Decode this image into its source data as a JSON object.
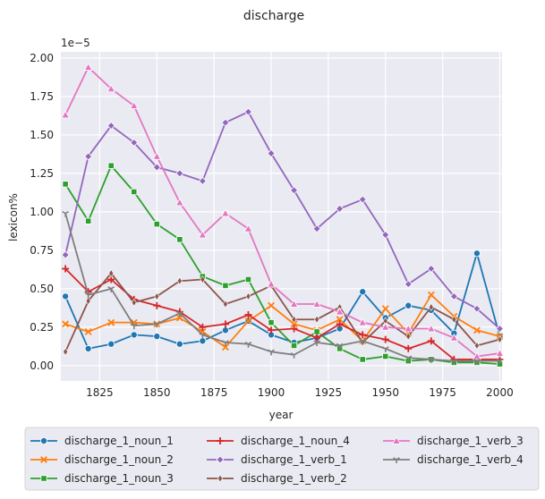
{
  "chart_data": {
    "type": "line",
    "title": "discharge",
    "xlabel": "year",
    "ylabel": "lexicon%",
    "y_multiplier_label": "1e−5",
    "xlim": [
      1808,
      2001
    ],
    "ylim": [
      -0.1,
      2.04
    ],
    "x_ticks": [
      1825,
      1850,
      1875,
      1900,
      1925,
      1950,
      1975,
      2000
    ],
    "y_ticks": [
      0.0,
      0.25,
      0.5,
      0.75,
      1.0,
      1.25,
      1.5,
      1.75,
      2.0
    ],
    "x_tick_labels": [
      "1825",
      "1850",
      "1875",
      "1900",
      "1925",
      "1950",
      "1975",
      "2000"
    ],
    "y_tick_labels": [
      "0.00",
      "0.25",
      "0.50",
      "0.75",
      "1.00",
      "1.25",
      "1.50",
      "1.75",
      "2.00"
    ],
    "grid": true,
    "legend_position": "bottom",
    "x": [
      1810,
      1820,
      1830,
      1840,
      1850,
      1860,
      1870,
      1880,
      1890,
      1900,
      1910,
      1920,
      1930,
      1940,
      1950,
      1960,
      1970,
      1980,
      1990,
      2000
    ],
    "series": [
      {
        "name": "discharge_1_noun_1",
        "color": "#1f77b4",
        "marker": "circle",
        "values": [
          0.45,
          0.11,
          0.14,
          0.2,
          0.19,
          0.14,
          0.16,
          0.23,
          0.29,
          0.2,
          0.15,
          0.18,
          0.24,
          0.48,
          0.31,
          0.39,
          0.36,
          0.21,
          0.73,
          0.19
        ]
      },
      {
        "name": "discharge_1_noun_2",
        "color": "#ff7f0e",
        "marker": "x",
        "values": [
          0.27,
          0.22,
          0.28,
          0.28,
          0.27,
          0.31,
          0.22,
          0.12,
          0.29,
          0.39,
          0.27,
          0.23,
          0.3,
          0.16,
          0.37,
          0.21,
          0.46,
          0.32,
          0.23,
          0.19
        ]
      },
      {
        "name": "discharge_1_noun_3",
        "color": "#2ca02c",
        "marker": "square",
        "values": [
          1.18,
          0.94,
          1.3,
          1.13,
          0.92,
          0.82,
          0.58,
          0.52,
          0.56,
          0.28,
          0.13,
          0.22,
          0.11,
          0.04,
          0.06,
          0.03,
          0.04,
          0.02,
          0.02,
          0.01
        ]
      },
      {
        "name": "discharge_1_noun_4",
        "color": "#d62728",
        "marker": "plus",
        "values": [
          0.63,
          0.48,
          0.56,
          0.43,
          0.39,
          0.35,
          0.25,
          0.27,
          0.33,
          0.23,
          0.24,
          0.18,
          0.27,
          0.2,
          0.17,
          0.11,
          0.16,
          0.04,
          0.04,
          0.04
        ]
      },
      {
        "name": "discharge_1_verb_1",
        "color": "#9467bd",
        "marker": "diamond",
        "values": [
          0.72,
          1.36,
          1.56,
          1.45,
          1.29,
          1.25,
          1.2,
          1.58,
          1.65,
          1.38,
          1.14,
          0.89,
          1.02,
          1.08,
          0.85,
          0.53,
          0.63,
          0.45,
          0.37,
          0.24
        ]
      },
      {
        "name": "discharge_1_verb_2",
        "color": "#8c564b",
        "marker": "thin-diamond",
        "values": [
          0.09,
          0.42,
          0.6,
          0.41,
          0.45,
          0.55,
          0.56,
          0.4,
          0.45,
          0.52,
          0.3,
          0.3,
          0.38,
          0.15,
          0.29,
          0.19,
          0.38,
          0.3,
          0.13,
          0.17
        ]
      },
      {
        "name": "discharge_1_verb_3",
        "color": "#e377c2",
        "marker": "triangle",
        "values": [
          1.63,
          1.94,
          1.8,
          1.69,
          1.36,
          1.06,
          0.85,
          0.99,
          0.89,
          0.53,
          0.4,
          0.4,
          0.35,
          0.28,
          0.25,
          0.24,
          0.24,
          0.18,
          0.06,
          0.08
        ]
      },
      {
        "name": "discharge_1_verb_4",
        "color": "#7f7f7f",
        "marker": "tri",
        "values": [
          0.99,
          0.46,
          0.5,
          0.26,
          0.27,
          0.34,
          0.2,
          0.15,
          0.14,
          0.09,
          0.07,
          0.15,
          0.13,
          0.16,
          0.11,
          0.05,
          0.04,
          0.03,
          0.03,
          0.03
        ]
      }
    ]
  }
}
